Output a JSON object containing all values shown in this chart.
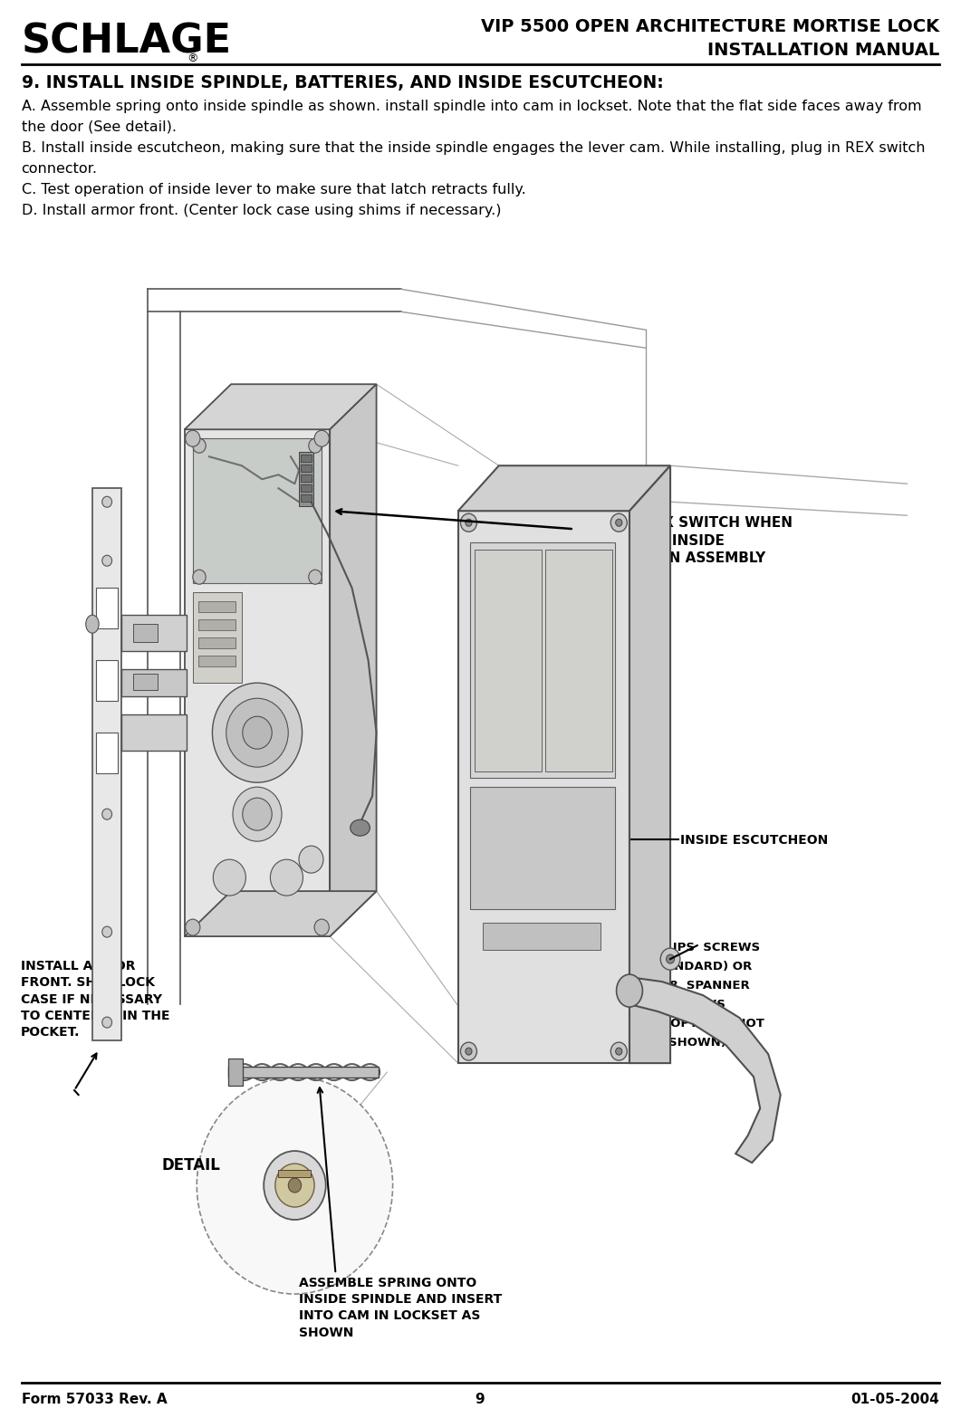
{
  "bg_color": "#ffffff",
  "title_line1": "VIP 5500 OPEN ARCHITECTURE MORTISE LOCK",
  "title_line2": "INSTALLATION MANUAL",
  "section_heading": "9. INSTALL INSIDE SPINDLE, BATTERIES, AND INSIDE ESCUTCHEON:",
  "body_lines": [
    "A. Assemble spring onto inside spindle as shown. install spindle into cam in lockset. Note that the flat side faces away from",
    "the door (See detail).",
    "B. Install inside escutcheon, making sure that the inside spindle engages the lever cam. While installing, plug in REX switch",
    "connector.",
    "C. Test operation of inside lever to make sure that latch retracts fully.",
    "D. Install armor front. (Center lock case using shims if necessary.)"
  ],
  "footer_left": "Form 57033 Rev. A",
  "footer_center": "9",
  "footer_right": "01-05-2004",
  "callout_plug_rex": "PLUG IN REX SWITCH WHEN\nINSTALLING INSIDE\nESCUTCHEON ASSEMBLY",
  "callout_assemble_spring": "ASSEMBLE SPRING ONTO\nINSIDE SPINDLE AND INSERT\nINTO CAM IN LOCKSET AS\nSHOWN",
  "callout_install_armor": "INSTALL ARMOR\nFRONT. SHIM LOCK\nCASE IF NECESSARY\nTO CENTER IT IN THE\nPOCKET.",
  "callout_inside_escutcheon": "INSIDE ESCUTCHEON",
  "callout_phillips_line1": "PHILLIPS  SCREWS",
  "callout_phillips_line2": "(STANDARD) OR",
  "callout_phillips_line3": "NO.8  SPANNER",
  "callout_phillips_line4": "SCREWS",
  "callout_phillips_line5": "(HSS  OPTION - NOT",
  "callout_phillips_line6": "SHOWN)",
  "callout_detail": "DETAIL"
}
